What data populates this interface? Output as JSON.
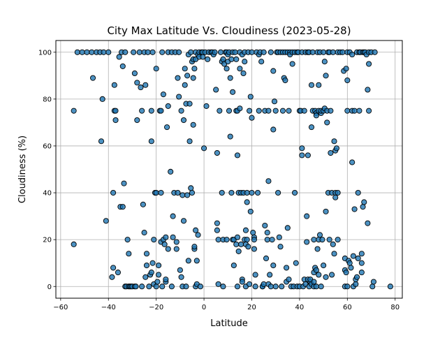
{
  "chart_data": {
    "type": "scatter",
    "title": "City Max Latitude Vs. Cloudiness (2023-05-28)",
    "xlabel": "Latitude",
    "ylabel": "Cloudiness (%)",
    "xlim": [
      -62,
      83
    ],
    "ylim": [
      -5,
      105
    ],
    "xticks": [
      -60,
      -40,
      -20,
      0,
      20,
      40,
      60,
      80
    ],
    "yticks": [
      0,
      20,
      40,
      60,
      80,
      100
    ],
    "xtick_labels": [
      "−60",
      "−40",
      "−20",
      "0",
      "20",
      "40",
      "60",
      "80"
    ],
    "ytick_labels": [
      "0",
      "20",
      "40",
      "60",
      "80",
      "100"
    ],
    "grid": true,
    "legend": "none",
    "marker_fill": "#1f77b4",
    "marker_edge": "#000000",
    "points": [
      [
        -54.5,
        75
      ],
      [
        -54.5,
        18
      ],
      [
        -53,
        100
      ],
      [
        -51,
        100
      ],
      [
        -49,
        100
      ],
      [
        -47,
        100
      ],
      [
        -46.5,
        89
      ],
      [
        -45,
        100
      ],
      [
        -43.5,
        100
      ],
      [
        -43,
        62
      ],
      [
        -42.5,
        80
      ],
      [
        -42,
        100
      ],
      [
        -41,
        28
      ],
      [
        -40,
        100
      ],
      [
        -38.5,
        4
      ],
      [
        -38,
        40
      ],
      [
        -38,
        8
      ],
      [
        -37.5,
        86
      ],
      [
        -37.5,
        75
      ],
      [
        -37,
        71
      ],
      [
        -37,
        75
      ],
      [
        -36,
        6
      ],
      [
        -35.5,
        98
      ],
      [
        -35,
        34
      ],
      [
        -34.5,
        100
      ],
      [
        -34,
        34
      ],
      [
        -34,
        94
      ],
      [
        -33.5,
        44
      ],
      [
        -33,
        0
      ],
      [
        -33,
        100
      ],
      [
        -32.5,
        0
      ],
      [
        -32,
        20
      ],
      [
        -31.5,
        0
      ],
      [
        -31.5,
        14
      ],
      [
        -31,
        0
      ],
      [
        -30.5,
        0
      ],
      [
        -30,
        0
      ],
      [
        -29.5,
        100
      ],
      [
        -29,
        0
      ],
      [
        -29,
        91
      ],
      [
        -28.5,
        0
      ],
      [
        -28,
        71
      ],
      [
        -28,
        87
      ],
      [
        -27,
        100
      ],
      [
        -26.5,
        85
      ],
      [
        -26,
        0
      ],
      [
        -26,
        75
      ],
      [
        -25.5,
        35
      ],
      [
        -25,
        100
      ],
      [
        -25,
        23
      ],
      [
        -24.5,
        86
      ],
      [
        -24.5,
        4
      ],
      [
        -24,
        9
      ],
      [
        -24,
        14
      ],
      [
        -23.5,
        100
      ],
      [
        -23,
        0
      ],
      [
        -22.5,
        5
      ],
      [
        -22,
        6
      ],
      [
        -22,
        62
      ],
      [
        -22,
        75
      ],
      [
        -21.5,
        10
      ],
      [
        -21.5,
        100
      ],
      [
        -21,
        20
      ],
      [
        -21,
        1
      ],
      [
        -20.5,
        40
      ],
      [
        -20,
        40
      ],
      [
        -20,
        93
      ],
      [
        -20,
        0
      ],
      [
        -19.5,
        2
      ],
      [
        -19,
        9
      ],
      [
        -19,
        5
      ],
      [
        -18.5,
        75
      ],
      [
        -18,
        75
      ],
      [
        -18,
        19
      ],
      [
        -18,
        40
      ],
      [
        -17.5,
        100
      ],
      [
        -17.5,
        0
      ],
      [
        -17,
        82
      ],
      [
        -17,
        20
      ],
      [
        -16.5,
        18
      ],
      [
        -16,
        2
      ],
      [
        -16,
        3
      ],
      [
        -16,
        21
      ],
      [
        -15.5,
        68
      ],
      [
        -15,
        100
      ],
      [
        -15,
        16
      ],
      [
        -15,
        77
      ],
      [
        -14,
        49
      ],
      [
        -13.5,
        100
      ],
      [
        -13.5,
        0
      ],
      [
        -13,
        30
      ],
      [
        -13,
        21
      ],
      [
        -12.5,
        40
      ],
      [
        -12,
        100
      ],
      [
        -11.5,
        16
      ],
      [
        -11.5,
        19
      ],
      [
        -11,
        40
      ],
      [
        -11,
        89
      ],
      [
        -10.5,
        81
      ],
      [
        -10.5,
        100
      ],
      [
        -10,
        7
      ],
      [
        -9.5,
        4
      ],
      [
        -9.5,
        75
      ],
      [
        -9,
        39
      ],
      [
        -9,
        0
      ],
      [
        -8.5,
        28
      ],
      [
        -8.5,
        71
      ],
      [
        -8,
        86
      ],
      [
        -8,
        93
      ],
      [
        -7.5,
        0
      ],
      [
        -7.5,
        78
      ],
      [
        -7,
        90
      ],
      [
        -7,
        39
      ],
      [
        -6.5,
        99
      ],
      [
        -6.5,
        11
      ],
      [
        -6,
        78
      ],
      [
        -6,
        62
      ],
      [
        -5.5,
        100
      ],
      [
        -5.5,
        42
      ],
      [
        -5,
        96
      ],
      [
        -5,
        40
      ],
      [
        -4.5,
        97
      ],
      [
        -4.5,
        89
      ],
      [
        -4.5,
        69
      ],
      [
        -4,
        16
      ],
      [
        -4,
        17
      ],
      [
        -4,
        93
      ],
      [
        -3.5,
        97
      ],
      [
        -3.5,
        100
      ],
      [
        -3.5,
        0
      ],
      [
        -3.5,
        24
      ],
      [
        -3,
        1
      ],
      [
        -3,
        11
      ],
      [
        -2.5,
        99
      ],
      [
        -2.5,
        22
      ],
      [
        -2,
        100
      ],
      [
        -2,
        98
      ],
      [
        -1.5,
        0
      ],
      [
        -1,
        100
      ],
      [
        -0.5,
        98
      ],
      [
        -0.5,
        100
      ],
      [
        0,
        59
      ],
      [
        0.5,
        100
      ],
      [
        1,
        77
      ],
      [
        1.5,
        97
      ],
      [
        2,
        100
      ],
      [
        3,
        100
      ],
      [
        3.5,
        100
      ],
      [
        4,
        99
      ],
      [
        4.5,
        100
      ],
      [
        5,
        84
      ],
      [
        5.5,
        57
      ],
      [
        5.5,
        27
      ],
      [
        5.5,
        24
      ],
      [
        6,
        1
      ],
      [
        6,
        20
      ],
      [
        6.5,
        75
      ],
      [
        7,
        100
      ],
      [
        7.5,
        40
      ],
      [
        7.5,
        96
      ],
      [
        8,
        20
      ],
      [
        8,
        97
      ],
      [
        8,
        0
      ],
      [
        8.5,
        95
      ],
      [
        9,
        100
      ],
      [
        9.5,
        20
      ],
      [
        9.5,
        93
      ],
      [
        9.5,
        100
      ],
      [
        10,
        96
      ],
      [
        10,
        99
      ],
      [
        10.5,
        100
      ],
      [
        10.5,
        75
      ],
      [
        11,
        64
      ],
      [
        11,
        89
      ],
      [
        11.5,
        40
      ],
      [
        11.5,
        97
      ],
      [
        12,
        100
      ],
      [
        12,
        83
      ],
      [
        12,
        20
      ],
      [
        12.5,
        9
      ],
      [
        12.5,
        20
      ],
      [
        13,
        100
      ],
      [
        13.5,
        75
      ],
      [
        13.5,
        97
      ],
      [
        13.5,
        18
      ],
      [
        14,
        0
      ],
      [
        14,
        21
      ],
      [
        14,
        75
      ],
      [
        14,
        56
      ],
      [
        14.5,
        40
      ],
      [
        14.5,
        15
      ],
      [
        15,
        76
      ],
      [
        15,
        93
      ],
      [
        15,
        100
      ],
      [
        15.5,
        18
      ],
      [
        15.5,
        40
      ],
      [
        16,
        3
      ],
      [
        16,
        2
      ],
      [
        16,
        99
      ],
      [
        16.5,
        91
      ],
      [
        16.5,
        40
      ],
      [
        17,
        20
      ],
      [
        17,
        96
      ],
      [
        17,
        100
      ],
      [
        17.5,
        0
      ],
      [
        17.5,
        24
      ],
      [
        17.5,
        18
      ],
      [
        18,
        40
      ],
      [
        18,
        20
      ],
      [
        18,
        36
      ],
      [
        18.5,
        17
      ],
      [
        18.5,
        100
      ],
      [
        19,
        75
      ],
      [
        19,
        1
      ],
      [
        19.5,
        32
      ],
      [
        19.5,
        81
      ],
      [
        20,
        72
      ],
      [
        20,
        100
      ],
      [
        20,
        40
      ],
      [
        20.5,
        23
      ],
      [
        21,
        21
      ],
      [
        21,
        16
      ],
      [
        21,
        20
      ],
      [
        21.5,
        5
      ],
      [
        21.5,
        0
      ],
      [
        22,
        100
      ],
      [
        22.5,
        40
      ],
      [
        23,
        75
      ],
      [
        23,
        99
      ],
      [
        23.5,
        100
      ],
      [
        24,
        96
      ],
      [
        24.5,
        0
      ],
      [
        24.5,
        0
      ],
      [
        25,
        1
      ],
      [
        25,
        100
      ],
      [
        25.5,
        26
      ],
      [
        25.5,
        75
      ],
      [
        26,
        12
      ],
      [
        26.5,
        20
      ],
      [
        26.5,
        23
      ],
      [
        27,
        45
      ],
      [
        27,
        75
      ],
      [
        27,
        1
      ],
      [
        27.5,
        5
      ],
      [
        28,
        100
      ],
      [
        28,
        0
      ],
      [
        28.5,
        20
      ],
      [
        29,
        67
      ],
      [
        29,
        9
      ],
      [
        29,
        92
      ],
      [
        29.5,
        79
      ],
      [
        30,
        0
      ],
      [
        30,
        75
      ],
      [
        30.5,
        100
      ],
      [
        31,
        100
      ],
      [
        31,
        40
      ],
      [
        31.5,
        21
      ],
      [
        32,
        100
      ],
      [
        32,
        17
      ],
      [
        32.5,
        0
      ],
      [
        33,
        100
      ],
      [
        33,
        75
      ],
      [
        33.5,
        89
      ],
      [
        34,
        100
      ],
      [
        34,
        88
      ],
      [
        34.5,
        2
      ],
      [
        34.5,
        8
      ],
      [
        35,
        100
      ],
      [
        35,
        25
      ],
      [
        35.5,
        3
      ],
      [
        35.5,
        75
      ],
      [
        36,
        100
      ],
      [
        36,
        99
      ],
      [
        36.5,
        0
      ],
      [
        37,
        100
      ],
      [
        37,
        95
      ],
      [
        37.5,
        0
      ],
      [
        38,
        100
      ],
      [
        38,
        40
      ],
      [
        38.5,
        10
      ],
      [
        39,
        100
      ],
      [
        39,
        0
      ],
      [
        39.5,
        100
      ],
      [
        40,
        75
      ],
      [
        40,
        0
      ],
      [
        40.5,
        75
      ],
      [
        41,
        56
      ],
      [
        41,
        59
      ],
      [
        41,
        100
      ],
      [
        41.5,
        0
      ],
      [
        42,
        75
      ],
      [
        42,
        3
      ],
      [
        42.5,
        100
      ],
      [
        42.5,
        1
      ],
      [
        43,
        30
      ],
      [
        43,
        19
      ],
      [
        43.5,
        100
      ],
      [
        43.5,
        3
      ],
      [
        43.5,
        56
      ],
      [
        44,
        0
      ],
      [
        44,
        100
      ],
      [
        44.5,
        2
      ],
      [
        44.5,
        3
      ],
      [
        45,
        68
      ],
      [
        45,
        86
      ],
      [
        45,
        1
      ],
      [
        45.5,
        100
      ],
      [
        45.5,
        75
      ],
      [
        46,
        0
      ],
      [
        46,
        20
      ],
      [
        46,
        2
      ],
      [
        46,
        6
      ],
      [
        46.5,
        75
      ],
      [
        46.5,
        8
      ],
      [
        47,
        74
      ],
      [
        47,
        73
      ],
      [
        47,
        7
      ],
      [
        47,
        0
      ],
      [
        47.5,
        100
      ],
      [
        47.5,
        16
      ],
      [
        48,
        86
      ],
      [
        48,
        75
      ],
      [
        48,
        20
      ],
      [
        48,
        5
      ],
      [
        48.5,
        100
      ],
      [
        48.5,
        22
      ],
      [
        49,
        74
      ],
      [
        49,
        75
      ],
      [
        49,
        0
      ],
      [
        49.5,
        20
      ],
      [
        50,
        100
      ],
      [
        50,
        75
      ],
      [
        50,
        9
      ],
      [
        50.5,
        96
      ],
      [
        50.5,
        76
      ],
      [
        51,
        32
      ],
      [
        51,
        4
      ],
      [
        51,
        90
      ],
      [
        51.5,
        70
      ],
      [
        51.5,
        75
      ],
      [
        52,
        100
      ],
      [
        52,
        40
      ],
      [
        52.5,
        100
      ],
      [
        52.5,
        20
      ],
      [
        53,
        75
      ],
      [
        53,
        57
      ],
      [
        53.5,
        40
      ],
      [
        53.5,
        5
      ],
      [
        54,
        100
      ],
      [
        54,
        18
      ],
      [
        54.5,
        62
      ],
      [
        54.5,
        14
      ],
      [
        55,
        40
      ],
      [
        55,
        58
      ],
      [
        55,
        38
      ],
      [
        55.5,
        59
      ],
      [
        56,
        40
      ],
      [
        56,
        20
      ],
      [
        56,
        100
      ],
      [
        57,
        100
      ],
      [
        58,
        100
      ],
      [
        58.5,
        92
      ],
      [
        59,
        7
      ],
      [
        59,
        0
      ],
      [
        59,
        12
      ],
      [
        59.5,
        6
      ],
      [
        59.5,
        93
      ],
      [
        60,
        100
      ],
      [
        60,
        88
      ],
      [
        60,
        75
      ],
      [
        60,
        0
      ],
      [
        60.5,
        11
      ],
      [
        61,
        10
      ],
      [
        61,
        100
      ],
      [
        61.5,
        8
      ],
      [
        62,
        99
      ],
      [
        62,
        53
      ],
      [
        62,
        75
      ],
      [
        62.5,
        0
      ],
      [
        62.5,
        13
      ],
      [
        63,
        75
      ],
      [
        63,
        33
      ],
      [
        63.5,
        1
      ],
      [
        63.5,
        3
      ],
      [
        64,
        100
      ],
      [
        64,
        4
      ],
      [
        64.5,
        40
      ],
      [
        64.5,
        12
      ],
      [
        65,
        100
      ],
      [
        65,
        75
      ],
      [
        65.5,
        100
      ],
      [
        66,
        6
      ],
      [
        66,
        14
      ],
      [
        66,
        10
      ],
      [
        66.5,
        34
      ],
      [
        66.5,
        100
      ],
      [
        67,
        36
      ],
      [
        67,
        100
      ],
      [
        67.5,
        100
      ],
      [
        68,
        99
      ],
      [
        68.5,
        27
      ],
      [
        68.5,
        84
      ],
      [
        69,
        75
      ],
      [
        69,
        100
      ],
      [
        69,
        95
      ],
      [
        70,
        100
      ],
      [
        70.5,
        0
      ],
      [
        71,
        2
      ],
      [
        71.5,
        100
      ],
      [
        78,
        0
      ]
    ]
  }
}
